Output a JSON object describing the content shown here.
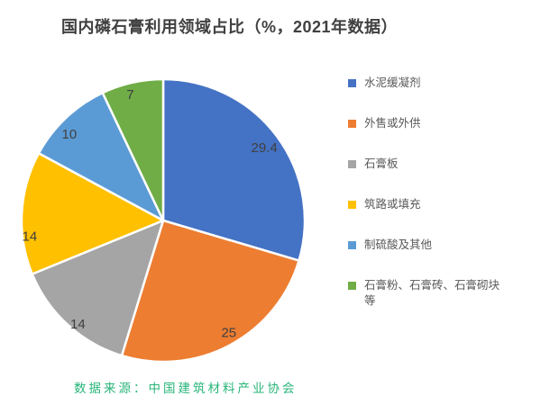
{
  "title": "国内磷石膏利用领域占比（%，2021年数据）",
  "source": {
    "text": "数据来源：中国建筑材料产业协会",
    "color": "#27b578"
  },
  "chart_data": {
    "type": "pie",
    "title": "国内磷石膏利用领域占比（%，2021年数据）",
    "unit": "%",
    "legend_position": "right",
    "start_angle_deg": 0,
    "direction": "clockwise",
    "slices": [
      {
        "label": "水泥缓凝剂",
        "value": 29.4,
        "color": "#4472C4"
      },
      {
        "label": "外售或外供",
        "value": 25,
        "color": "#ED7D31"
      },
      {
        "label": "石膏板",
        "value": 14,
        "color": "#A5A5A5"
      },
      {
        "label": "筑路或填充",
        "value": 14,
        "color": "#FFC000"
      },
      {
        "label": "制硫酸及其他",
        "value": 10,
        "color": "#5B9BD5"
      },
      {
        "label": "石膏粉、石膏砖、石膏砌块等",
        "value": 7,
        "color": "#70AD47"
      }
    ]
  }
}
